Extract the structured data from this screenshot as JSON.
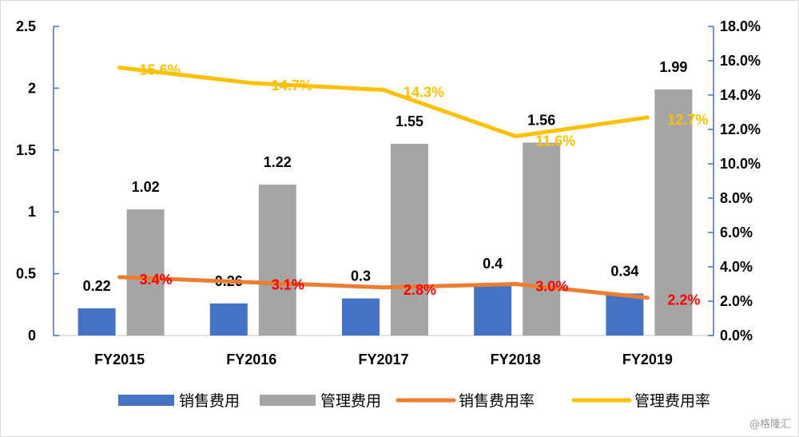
{
  "chart_data": {
    "type": "bar+line",
    "categories": [
      "FY2015",
      "FY2016",
      "FY2017",
      "FY2018",
      "FY2019"
    ],
    "y_left": {
      "range": [
        0,
        2.5
      ],
      "ticks": [
        "0",
        "0.5",
        "1",
        "1.5",
        "2",
        "2.5"
      ]
    },
    "y_right": {
      "range": [
        0,
        18
      ],
      "ticks": [
        "0.0%",
        "2.0%",
        "4.0%",
        "6.0%",
        "8.0%",
        "10.0%",
        "12.0%",
        "14.0%",
        "16.0%",
        "18.0%"
      ]
    },
    "grid": false,
    "legend_position": "bottom",
    "series": [
      {
        "name": "销售费用",
        "type": "bar",
        "axis": "left",
        "color": "#4472c4",
        "values": [
          0.22,
          0.26,
          0.3,
          0.4,
          0.34
        ],
        "labels": [
          "0.22",
          "0.26",
          "0.3",
          "0.4",
          "0.34"
        ]
      },
      {
        "name": "管理费用",
        "type": "bar",
        "axis": "left",
        "color": "#a5a5a5",
        "values": [
          1.02,
          1.22,
          1.55,
          1.56,
          1.99
        ],
        "labels": [
          "1.02",
          "1.22",
          "1.55",
          "1.56",
          "1.99"
        ]
      },
      {
        "name": "销售费用率",
        "type": "line",
        "axis": "right",
        "color": "#ed7d31",
        "label_color": "#ff0000",
        "values": [
          3.4,
          3.1,
          2.8,
          3.0,
          2.2
        ],
        "labels": [
          "3.4%",
          "3.1%",
          "2.8%",
          "3.0%",
          "2.2%"
        ]
      },
      {
        "name": "管理费用率",
        "type": "line",
        "axis": "right",
        "color": "#ffc000",
        "label_color": "#ffc000",
        "values": [
          15.6,
          14.7,
          14.3,
          11.6,
          12.7
        ],
        "labels": [
          "15.6%",
          "14.7%",
          "14.3%",
          "11.6%",
          "12.7%"
        ]
      }
    ]
  },
  "watermark": "@格隆汇"
}
